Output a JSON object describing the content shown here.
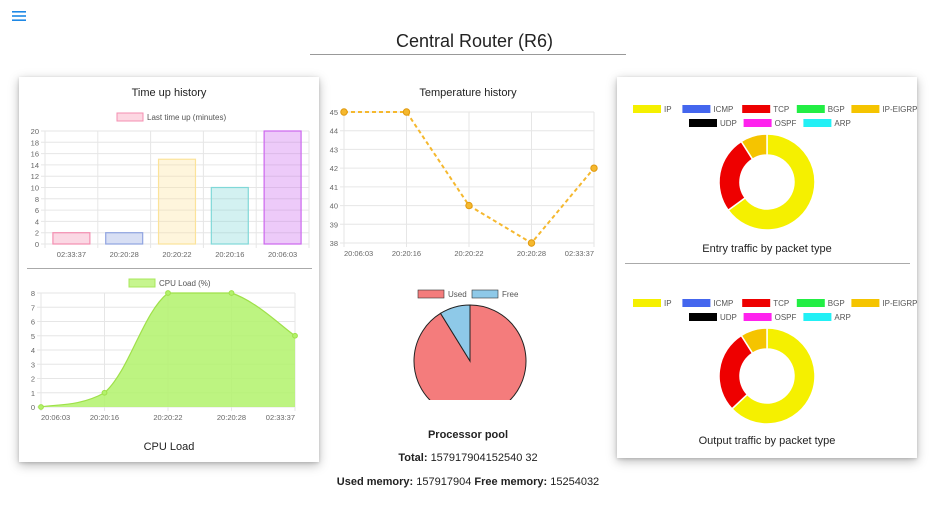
{
  "page": {
    "title": "Central Router (R6)",
    "menu_icon": "hamburger-menu-icon"
  },
  "colors": {
    "accent": "#1e88e5",
    "grid": "#e6e6e6",
    "axis_text": "#666666"
  },
  "cards": {
    "time_up_title": "Time up history",
    "cpu_load_caption": "CPU Load",
    "temperature_title": "Temperature history",
    "processor_pool_title": "Processor pool",
    "entry_traffic_caption": "Entry traffic by packet type",
    "output_traffic_caption": "Output traffic by packet type"
  },
  "memory": {
    "total_label": "Total:",
    "total_value": "157917904152540 32",
    "used_label": "Used memory:",
    "used_value": "157917904",
    "free_label": "Free memory:",
    "free_value": "15254032"
  },
  "chart_data": [
    {
      "id": "time_up",
      "type": "bar",
      "categories": [
        "02:33:37",
        "20:20:28",
        "20:20:22",
        "20:20:16",
        "20:06:03"
      ],
      "series": [
        {
          "name": "Last time up (minutes)",
          "values": [
            2,
            2,
            15,
            10,
            20
          ]
        }
      ],
      "bar_colors": [
        "#f48fb1",
        "#90a4e0",
        "#fbe39a",
        "#80d8d8",
        "#cc66ee"
      ],
      "ylim": [
        0,
        20
      ],
      "yticks": [
        0,
        2,
        4,
        6,
        8,
        10,
        12,
        14,
        16,
        18,
        20
      ],
      "legend_position": "top",
      "grid": true
    },
    {
      "id": "cpu_load",
      "type": "area",
      "categories": [
        "20:06:03",
        "20:20:16",
        "20:20:22",
        "20:20:28",
        "02:33:37"
      ],
      "series": [
        {
          "name": "CPU Load (%)",
          "values": [
            0,
            1,
            8,
            8,
            5
          ]
        }
      ],
      "color": "#b2f26b",
      "ylim": [
        0,
        8
      ],
      "yticks": [
        0,
        1,
        2,
        3,
        4,
        5,
        6,
        7,
        8
      ],
      "legend_position": "top",
      "grid": true
    },
    {
      "id": "temperature",
      "type": "line",
      "categories": [
        "20:06:03",
        "20:20:16",
        "20:20:22",
        "20:20:28",
        "02:33:37"
      ],
      "series": [
        {
          "values": [
            45,
            45,
            40,
            38,
            42
          ]
        }
      ],
      "color": "#f5b82e",
      "ylim": [
        38,
        45
      ],
      "yticks": [
        38,
        39,
        40,
        41,
        42,
        43,
        44,
        45
      ],
      "grid": true
    },
    {
      "id": "processor_pool",
      "type": "pie",
      "labels": [
        "Used",
        "Free"
      ],
      "values": [
        157917904,
        15254032
      ],
      "colors": [
        "#f47c7c",
        "#8ec9e8"
      ],
      "legend_position": "top"
    },
    {
      "id": "entry_traffic",
      "type": "pie",
      "labels": [
        "IP",
        "ICMP",
        "TCP",
        "BGP",
        "IP-EIGRP",
        "UDP",
        "OSPF",
        "ARP"
      ],
      "values": [
        65,
        0,
        26,
        0,
        9,
        0,
        0,
        0
      ],
      "colors": [
        "#f5f000",
        "#4466ee",
        "#ee0000",
        "#22ee44",
        "#f5c400",
        "#000000",
        "#ff22ee",
        "#22f0f5"
      ],
      "legend_position": "top"
    },
    {
      "id": "output_traffic",
      "type": "pie",
      "labels": [
        "IP",
        "ICMP",
        "TCP",
        "BGP",
        "IP-EIGRP",
        "UDP",
        "OSPF",
        "ARP"
      ],
      "values": [
        63,
        0,
        28,
        0,
        9,
        0,
        0,
        0
      ],
      "colors": [
        "#f5f000",
        "#4466ee",
        "#ee0000",
        "#22ee44",
        "#f5c400",
        "#000000",
        "#ff22ee",
        "#22f0f5"
      ],
      "legend_position": "top"
    }
  ]
}
